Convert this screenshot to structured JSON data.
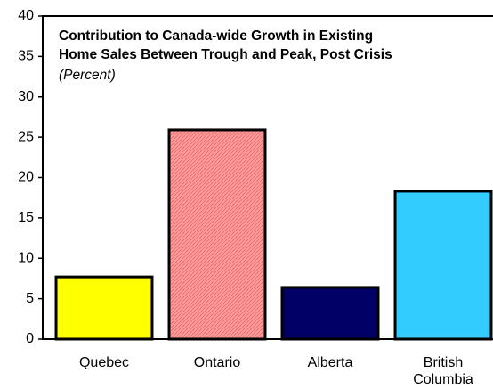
{
  "chart_data": {
    "type": "bar",
    "title": [
      "Contribution to Canada-wide Growth in Existing",
      "Home Sales  Between Trough and Peak, Post Crisis"
    ],
    "subtitle": "(Percent)",
    "categories": [
      "Quebec",
      "Ontario",
      "Alberta",
      "British Columbia"
    ],
    "values": [
      7.7,
      25.9,
      6.4,
      18.3
    ],
    "colors": [
      "#ffff00",
      "#ff9999",
      "#000066",
      "#33ccff"
    ],
    "ylim": [
      0,
      40
    ],
    "yticks": [
      0,
      5,
      10,
      15,
      20,
      25,
      30,
      35,
      40
    ],
    "grid": false
  }
}
